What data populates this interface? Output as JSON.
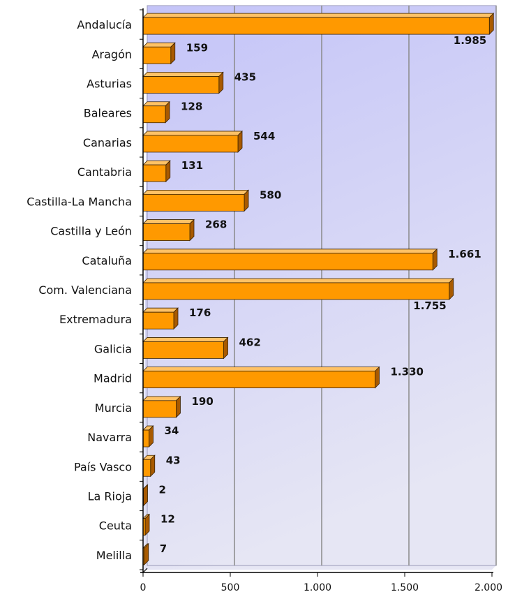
{
  "chart_data": {
    "type": "bar",
    "orientation": "horizontal",
    "categories": [
      "Andalucía",
      "Aragón",
      "Asturias",
      "Baleares",
      "Canarias",
      "Cantabria",
      "Castilla-La Mancha",
      "Castilla y León",
      "Cataluña",
      "Com. Valenciana",
      "Extremadura",
      "Galicia",
      "Madrid",
      "Murcia",
      "Navarra",
      "País Vasco",
      "La Rioja",
      "Ceuta",
      "Melilla"
    ],
    "values": [
      1985,
      159,
      435,
      128,
      544,
      131,
      580,
      268,
      1661,
      1755,
      176,
      462,
      1330,
      190,
      34,
      43,
      2,
      12,
      7
    ],
    "value_labels": [
      "1.985",
      "159",
      "435",
      "128",
      "544",
      "131",
      "580",
      "268",
      "1.661",
      "1.755",
      "176",
      "462",
      "1.330",
      "190",
      "34",
      "43",
      "2",
      "12",
      "7"
    ],
    "xlim": [
      0,
      2000
    ],
    "xticks": [
      0,
      500,
      1000,
      1500,
      2000
    ],
    "xtick_labels": [
      "0",
      "500",
      "1.000",
      "1.500",
      "2.000"
    ],
    "grid": true,
    "legend": "none",
    "colors": {
      "bar_front": "#FF9900",
      "bar_top": "#FFC266",
      "bar_side": "#A85A00",
      "bar_outline": "#3a2200",
      "plot_bg_top": "#C4C4F8",
      "plot_bg_bottom": "#E6E6F4",
      "grid": "#8A8A8A",
      "axis": "#000000"
    }
  }
}
